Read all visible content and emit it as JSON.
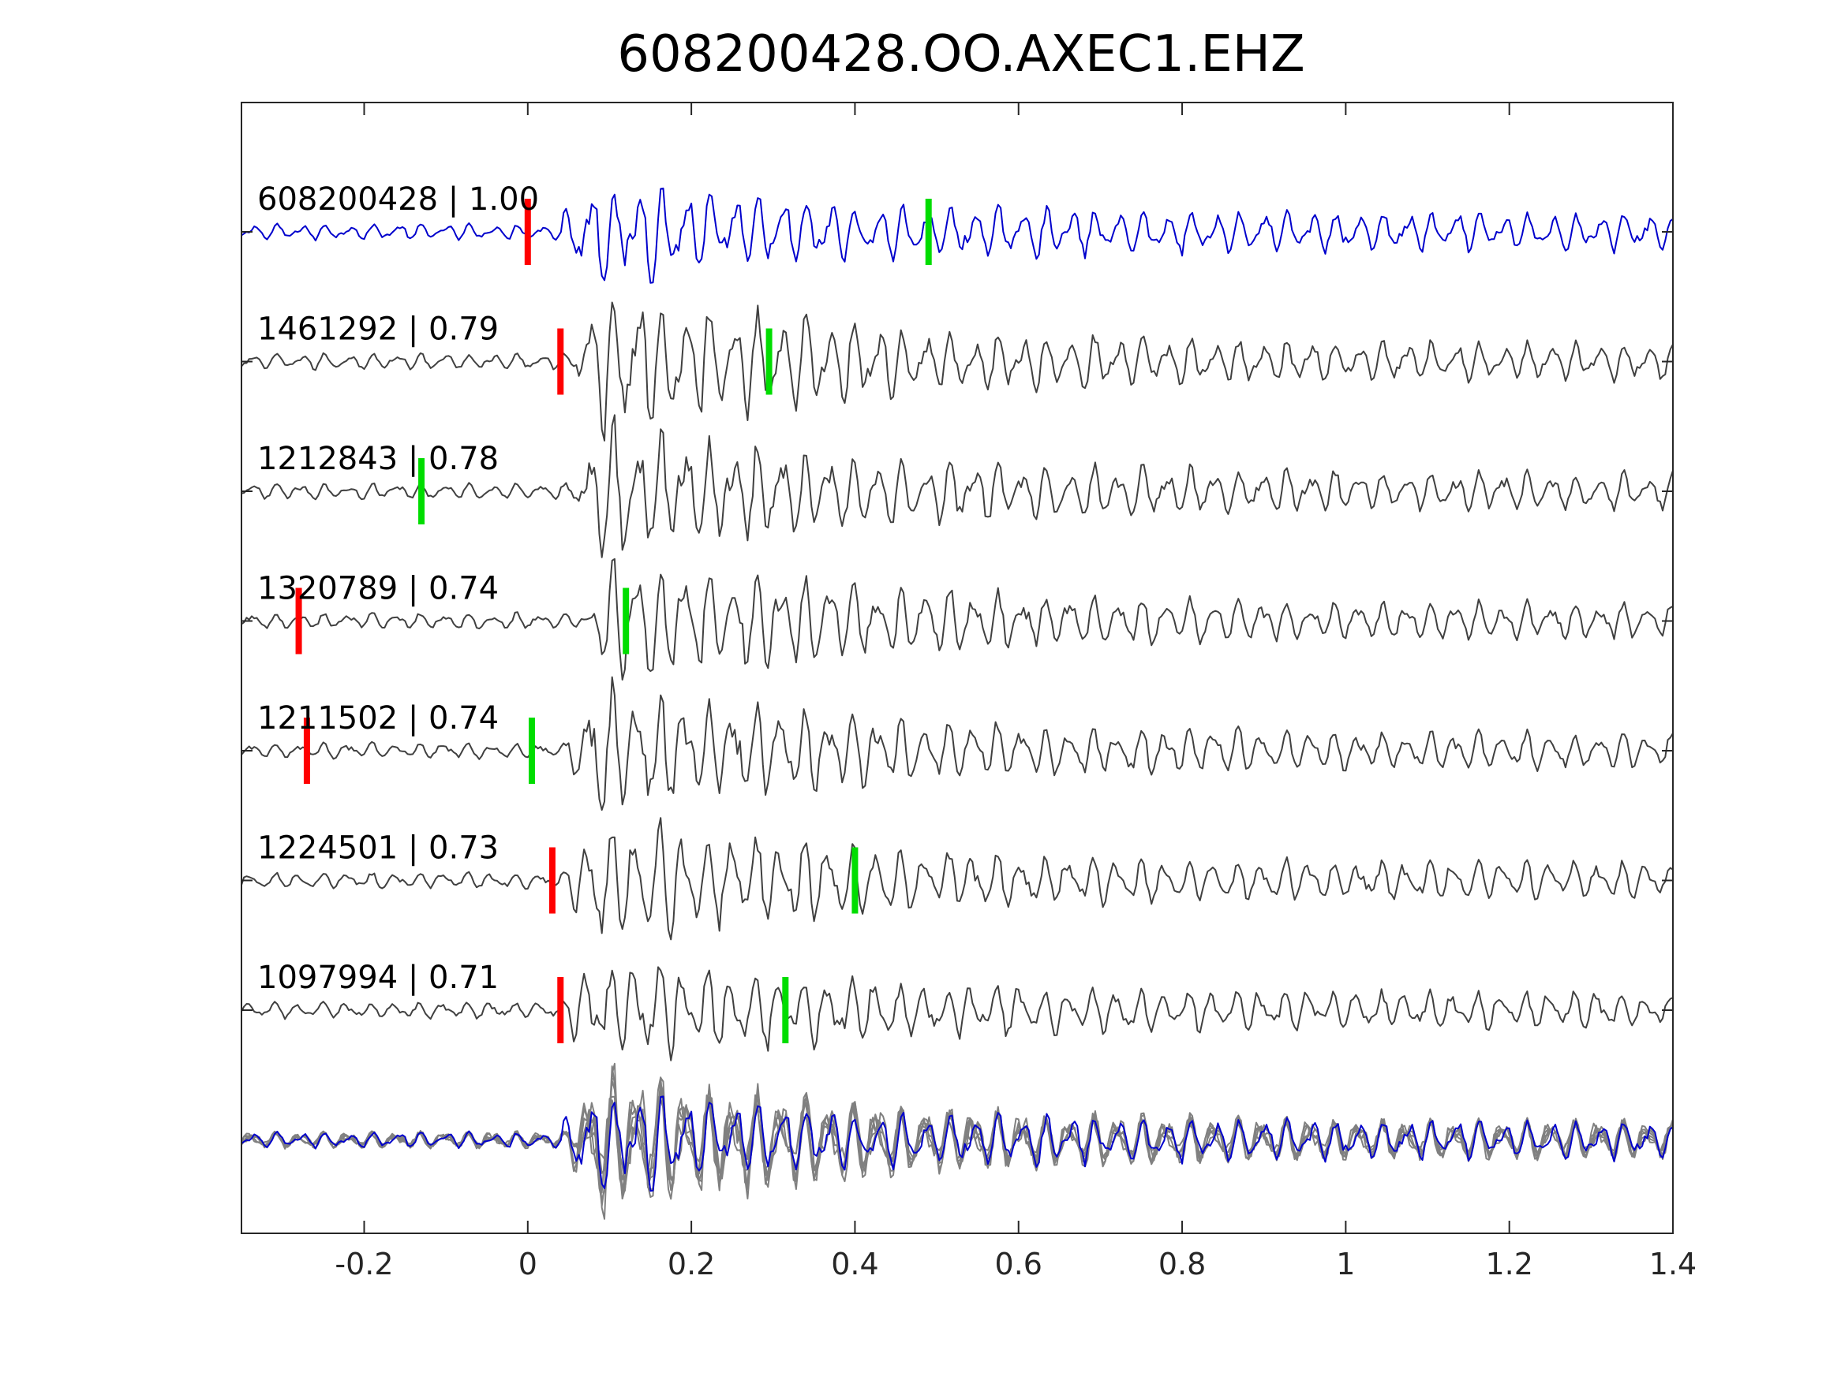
{
  "chart_data": {
    "type": "line",
    "title": "608200428.OO.AXEC1.EHZ",
    "xlabel": "",
    "ylabel": "",
    "xlim": [
      -0.35,
      1.4
    ],
    "xticks": [
      -0.2,
      0,
      0.2,
      0.4,
      0.6,
      0.8,
      1,
      1.2,
      1.4
    ],
    "xtick_labels": [
      "-0.2",
      "0",
      "0.2",
      "0.4",
      "0.6",
      "0.8",
      "1",
      "1.2",
      "1.4"
    ],
    "grid": false,
    "legend": "none",
    "colors": {
      "reference": "#0000cc",
      "match": "#404040",
      "stack": "#808080",
      "p_pick": "#ff0000",
      "s_pick": "#00dd00",
      "axes": "#262626"
    },
    "traces": [
      {
        "label": "608200428 | 1.00",
        "event": "608200428",
        "cc": 1.0,
        "reference": true,
        "p_pick": 0.0,
        "s_pick": 0.49
      },
      {
        "label": "1461292 | 0.79",
        "event": "1461292",
        "cc": 0.79,
        "reference": false,
        "p_pick": 0.04,
        "s_pick": 0.295
      },
      {
        "label": "1212843 | 0.78",
        "event": "1212843",
        "cc": 0.78,
        "reference": false,
        "p_pick": null,
        "s_pick": -0.13
      },
      {
        "label": "1320789 | 0.74",
        "event": "1320789",
        "cc": 0.74,
        "reference": false,
        "p_pick": -0.28,
        "s_pick": 0.12
      },
      {
        "label": "1211502 | 0.74",
        "event": "1211502",
        "cc": 0.74,
        "reference": false,
        "p_pick": -0.27,
        "s_pick": 0.005
      },
      {
        "label": "1224501 | 0.73",
        "event": "1224501",
        "cc": 0.73,
        "reference": false,
        "p_pick": 0.03,
        "s_pick": 0.4
      },
      {
        "label": "1097994 | 0.71",
        "event": "1097994",
        "cc": 0.71,
        "reference": false,
        "p_pick": 0.04,
        "s_pick": 0.315
      }
    ]
  }
}
